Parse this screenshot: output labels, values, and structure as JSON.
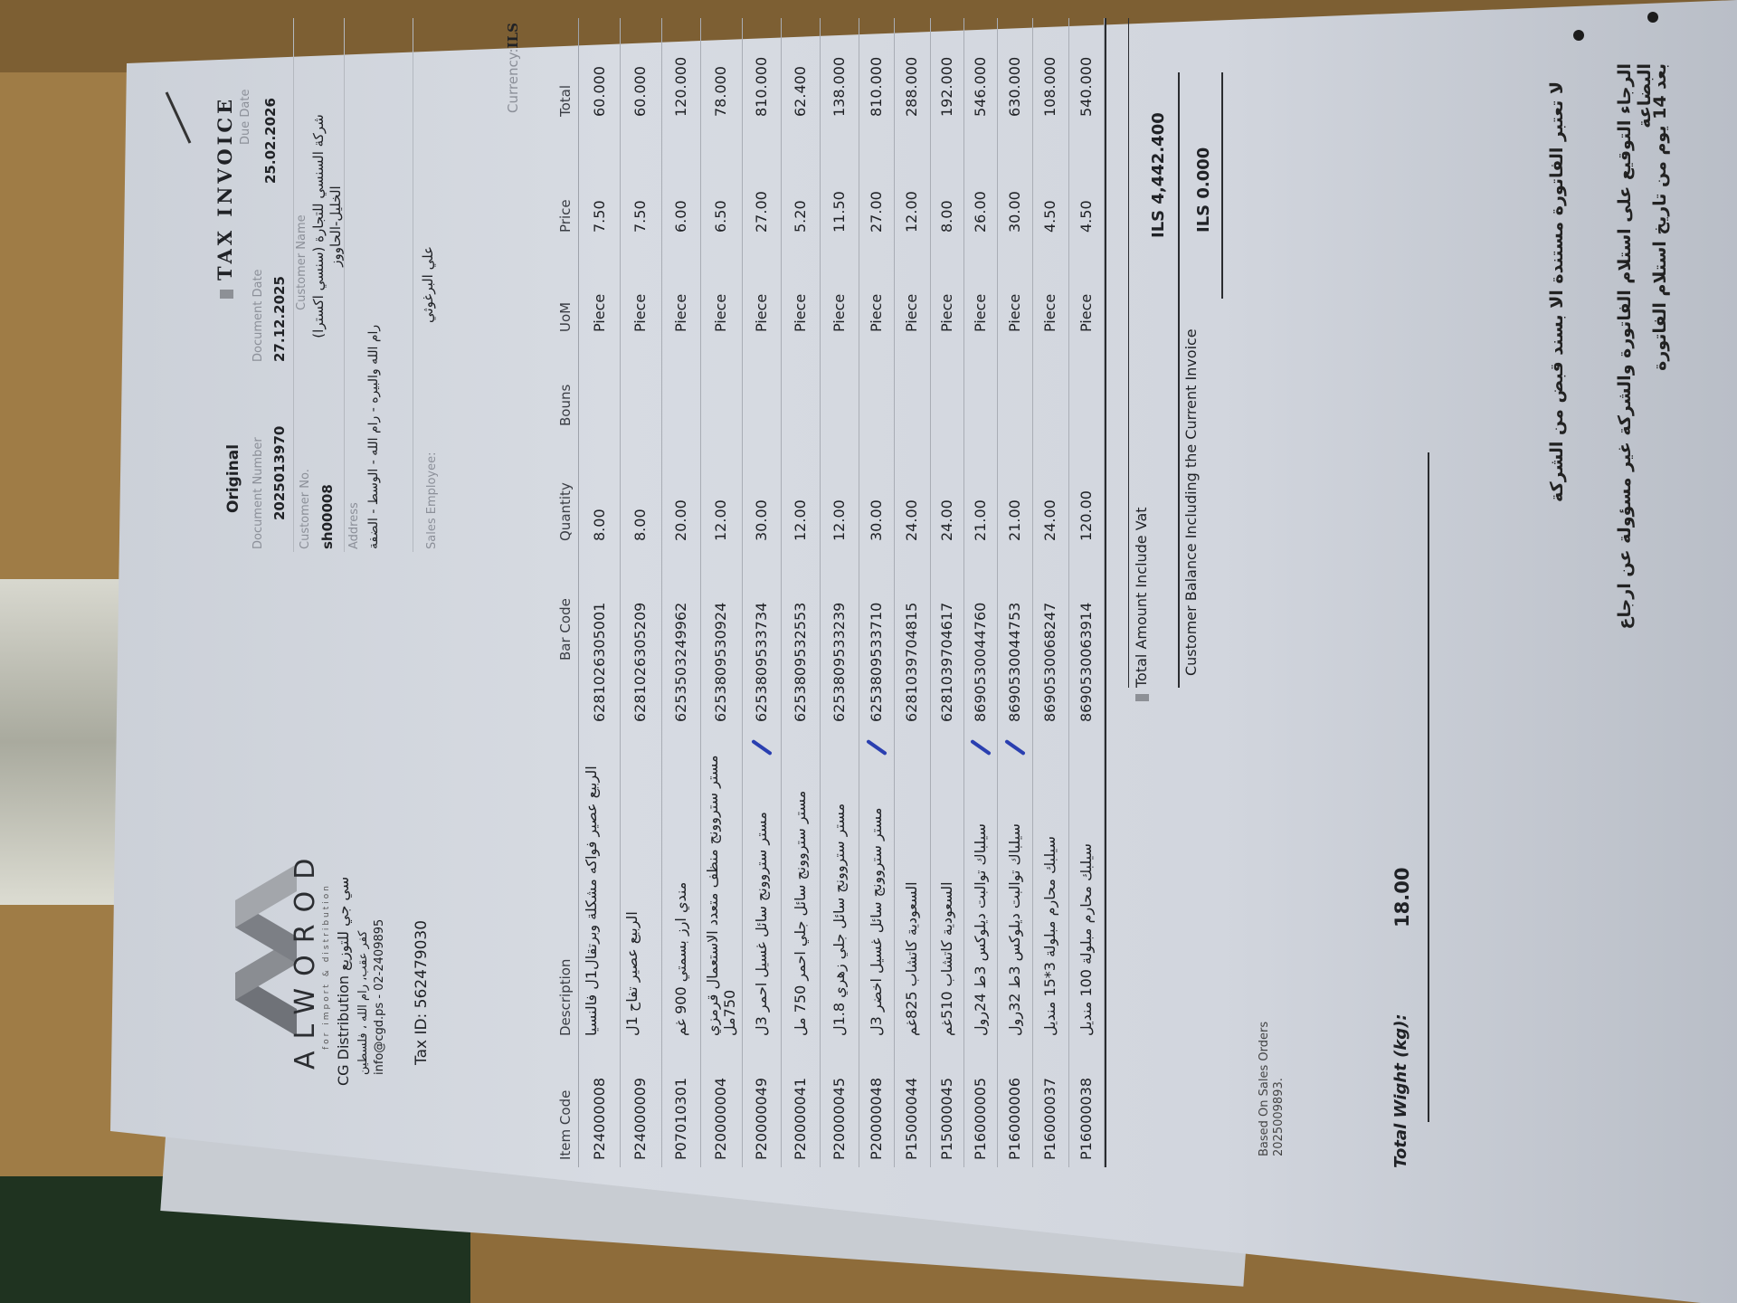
{
  "colors": {
    "paper": "#d7dbe2",
    "cardboard": "#9f7c46",
    "ink": "#202226",
    "pen": "#2a3fb0"
  },
  "company": {
    "logo_text": "ALWOROD",
    "tagline": "for import & distribution",
    "name_line": "CG Distribution سي جي للتوزيع",
    "address": "كفر عقب، رام الله ، فلسطين",
    "contact": "info@cgd.ps - 02-2409895",
    "tax_id": "Tax ID: 562479030"
  },
  "header": {
    "title": "TAX INVOICE",
    "copy": "Original",
    "document_number_label": "Document Number",
    "document_number": "2025013970",
    "document_date_label": "Document Date",
    "document_date": "27.12.2025",
    "due_date_label": "Due Date",
    "due_date": "25.02.2026",
    "customer_no_label": "Customer No.",
    "customer_no": "sh00008",
    "customer_name_label": "Customer Name",
    "customer_name_line1": "شركة السنسي للتجارة (سنسي اكسترا)",
    "customer_name_line2": "الخليل-الحاووز",
    "address_label": "Address",
    "address": "رام الله والبيره - رام الله - الوسط - الضفة",
    "sales_employee_label": "Sales Employee:",
    "sales_employee": "علي البرغوثي",
    "currency_label": "Currency:",
    "currency": "ILS"
  },
  "table": {
    "columns": [
      "Item Code",
      "Description",
      "Bar Code",
      "Quantity",
      "Bouns",
      "UoM",
      "Price",
      "Total"
    ],
    "rows": [
      {
        "item_code": "P24000008",
        "description": "الربيع عصير فواكه مشكلة وبرتقال1ل فالنسيا",
        "bar_code": "6281026305001",
        "quantity": "8.00",
        "uom": "Piece",
        "price": "7.50",
        "total": "60.000",
        "pen_mark": false
      },
      {
        "item_code": "P24000009",
        "description": "الربيع عصير تفاح 1ل",
        "bar_code": "6281026305209",
        "quantity": "8.00",
        "uom": "Piece",
        "price": "7.50",
        "total": "60.000",
        "pen_mark": false
      },
      {
        "item_code": "P07010301",
        "description": "مندي ارز بسمتي 900 غم",
        "bar_code": "6253503249962",
        "quantity": "20.00",
        "uom": "Piece",
        "price": "6.00",
        "total": "120.000",
        "pen_mark": false
      },
      {
        "item_code": "P20000004",
        "description": "مستر ستروونج منظف متعدد الاستعمال قرمزي 750مل",
        "bar_code": "6253809530924",
        "quantity": "12.00",
        "uom": "Piece",
        "price": "6.50",
        "total": "78.000",
        "pen_mark": false
      },
      {
        "item_code": "P20000049",
        "description": "مستر ستروونج سائل غسيل احمر 3ل",
        "bar_code": "6253809533734",
        "quantity": "30.00",
        "uom": "Piece",
        "price": "27.00",
        "total": "810.000",
        "pen_mark": true
      },
      {
        "item_code": "P20000041",
        "description": "مستر ستروونج سائل جلي احمر 750 مل",
        "bar_code": "6253809532553",
        "quantity": "12.00",
        "uom": "Piece",
        "price": "5.20",
        "total": "62.400",
        "pen_mark": false
      },
      {
        "item_code": "P20000045",
        "description": "مستر ستروونج سائل جلي زهري 1.8ل",
        "bar_code": "6253809533239",
        "quantity": "12.00",
        "uom": "Piece",
        "price": "11.50",
        "total": "138.000",
        "pen_mark": false
      },
      {
        "item_code": "P20000048",
        "description": "مستر ستروونج سائل غسيل اخضر 3ل",
        "bar_code": "6253809533710",
        "quantity": "30.00",
        "uom": "Piece",
        "price": "27.00",
        "total": "810.000",
        "pen_mark": true
      },
      {
        "item_code": "P15000044",
        "description": "السعودية كاتشاب 825غم",
        "bar_code": "6281039704815",
        "quantity": "24.00",
        "uom": "Piece",
        "price": "12.00",
        "total": "288.000",
        "pen_mark": false
      },
      {
        "item_code": "P15000045",
        "description": "السعودية كاتشاب 510غم",
        "bar_code": "6281039704617",
        "quantity": "24.00",
        "uom": "Piece",
        "price": "8.00",
        "total": "192.000",
        "pen_mark": false
      },
      {
        "item_code": "P16000005",
        "description": "سيلباك توالبت ديلوكس 3ط 24رول",
        "bar_code": "8690530044760",
        "quantity": "21.00",
        "uom": "Piece",
        "price": "26.00",
        "total": "546.000",
        "pen_mark": true
      },
      {
        "item_code": "P16000006",
        "description": "سيلباك توالبت ديلوكس 3ط 32رول",
        "bar_code": "8690530044753",
        "quantity": "21.00",
        "uom": "Piece",
        "price": "30.00",
        "total": "630.000",
        "pen_mark": true
      },
      {
        "item_code": "P16000037",
        "description": "سيلبك محارم مبلولة 3*15 منديل",
        "bar_code": "8690530068247",
        "quantity": "24.00",
        "uom": "Piece",
        "price": "4.50",
        "total": "108.000",
        "pen_mark": false
      },
      {
        "item_code": "P16000038",
        "description": "سيلبك محارم مبلولة 100 منديل",
        "bar_code": "8690530063914",
        "quantity": "120.00",
        "uom": "Piece",
        "price": "4.50",
        "total": "540.000",
        "pen_mark": false
      }
    ]
  },
  "totals": {
    "total_label": "Total Amount Include Vat",
    "total_value": "ILS 4,442.400",
    "balance_label": "Customer Balance Including the Current Invoice",
    "balance_value": "ILS 0.000"
  },
  "footer": {
    "based_on_line1": "Based On Sales Orders",
    "based_on_line2": "2025009893.",
    "weight_label": "Total Wight (kg):",
    "weight_value": "18.00",
    "notes": [
      "لا تعتبر الفاتورة مستندة الا بسند قبض من الشركة",
      "الرجاء التوقيع على استلام الفاتورة والشركة غير مسؤولة عن ارجاع البضاعة",
      "بعد 14 يوم من تاريخ استلام الفاتورة"
    ]
  }
}
